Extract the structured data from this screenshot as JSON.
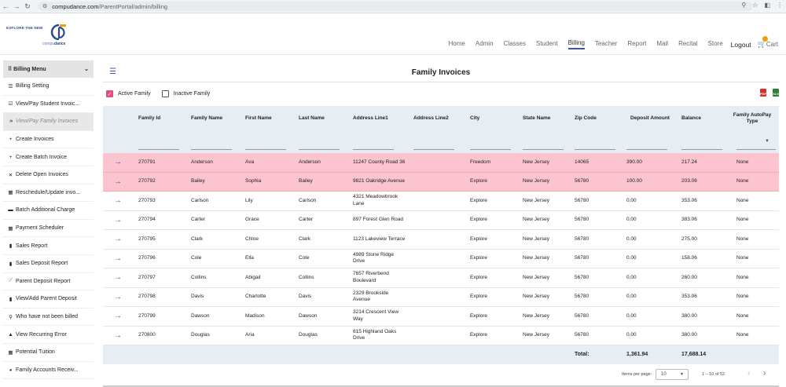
{
  "browser": {
    "host": "compudance.com",
    "path": "/ParentPortal/admin/billing"
  },
  "logo": {
    "tagline": "EXPLORE THE NEW",
    "brand_plain": "compu",
    "brand_bold": "dance"
  },
  "nav": {
    "items": [
      "Home",
      "Admin",
      "Classes",
      "Student",
      "Billing",
      "Teacher",
      "Report",
      "Mail",
      "Recital",
      "Store"
    ],
    "active": "Billing",
    "logout": "Logout",
    "cart": "Cart"
  },
  "sidebar": {
    "title": "Billing Menu",
    "items": [
      {
        "icon": "list-icon",
        "glyph": "☰",
        "label": "Billing Setting"
      },
      {
        "icon": "checkbox-icon",
        "glyph": "☑",
        "label": "View/Pay Student Invoic..."
      },
      {
        "icon": "flag-icon",
        "glyph": "⚑",
        "label": "View/Pay Family Invoices"
      },
      {
        "icon": "plus-icon",
        "glyph": "+",
        "label": "Create Invoices"
      },
      {
        "icon": "plus-icon",
        "glyph": "+",
        "label": "Create Batch Invoice"
      },
      {
        "icon": "x-icon",
        "glyph": "✕",
        "label": "Delete Open Invoices"
      },
      {
        "icon": "calendar-icon",
        "glyph": "▦",
        "label": "Reschedule/Update invo..."
      },
      {
        "icon": "card-icon",
        "glyph": "▬",
        "label": "Batch Additional Charge"
      },
      {
        "icon": "calendar-icon",
        "glyph": "▦",
        "label": "Payment Scheduler"
      },
      {
        "icon": "bar-chart-icon",
        "glyph": "▮",
        "label": "Sales Report"
      },
      {
        "icon": "bar-chart-icon",
        "glyph": "▮",
        "label": "Sales Deposit Report"
      },
      {
        "icon": "line-chart-icon",
        "glyph": "⟋",
        "label": "Parent Deposit Report"
      },
      {
        "icon": "bar-chart-icon",
        "glyph": "▮",
        "label": "View/Add Parent Deposit"
      },
      {
        "icon": "search-icon",
        "glyph": "⚲",
        "label": "Who have not been billed"
      },
      {
        "icon": "warning-icon",
        "glyph": "▲",
        "label": "View Recurring Error"
      },
      {
        "icon": "calendar-icon",
        "glyph": "▦",
        "label": "Potential Tuition"
      },
      {
        "icon": "pie-chart-icon",
        "glyph": "◕",
        "label": "Family Accounts Receiv..."
      }
    ]
  },
  "page": {
    "title": "Family Invoices",
    "filter_active": "Active Family",
    "filter_inactive": "Inactive Family"
  },
  "table": {
    "columns": [
      "",
      "Family Id",
      "Family Name",
      "First Name",
      "Last Name",
      "Address Line1",
      "Address Line2",
      "City",
      "State Name",
      "Zip Code",
      "Deposit Amount",
      "Balance",
      "Family AutoPay Type"
    ],
    "rows": [
      {
        "id": "270791",
        "family": "Anderson",
        "first": "Ava",
        "last": "Anderson",
        "addr1": "11247 County Road 36",
        "addr2": "",
        "city": "Freedom",
        "state": "New Jersey",
        "zip": "14065",
        "deposit": "390.00",
        "balance": "217.24",
        "autopay": "None",
        "highlight": true
      },
      {
        "id": "270792",
        "family": "Bailey",
        "first": "Sophia",
        "last": "Bailey",
        "addr1": "9821 Oakridge Avenue",
        "addr2": "",
        "city": "Explore",
        "state": "New Jersey",
        "zip": "56780",
        "deposit": "100.00",
        "balance": "203.06",
        "autopay": "None",
        "highlight": true
      },
      {
        "id": "270793",
        "family": "Carlson",
        "first": "Lily",
        "last": "Carlson",
        "addr1": "4321 Meadowbrook Lane",
        "addr2": "",
        "city": "Explore",
        "state": "New Jersey",
        "zip": "56780",
        "deposit": "0.00",
        "balance": "353.06",
        "autopay": "None",
        "highlight": false
      },
      {
        "id": "270794",
        "family": "Carter",
        "first": "Grace",
        "last": "Carter",
        "addr1": "897 Forest Glen Road",
        "addr2": "",
        "city": "Explore",
        "state": "New Jersey",
        "zip": "56780",
        "deposit": "0.00",
        "balance": "383.06",
        "autopay": "None",
        "highlight": false
      },
      {
        "id": "270795",
        "family": "Clark",
        "first": "Chloe",
        "last": "Clark",
        "addr1": "1123 Lakeview Terrace",
        "addr2": "",
        "city": "Explore",
        "state": "New Jersey",
        "zip": "56780",
        "deposit": "0.00",
        "balance": "275.00",
        "autopay": "None",
        "highlight": false
      },
      {
        "id": "270796",
        "family": "Cole",
        "first": "Ella",
        "last": "Cole",
        "addr1": "4989 Stone Ridge Drive",
        "addr2": "",
        "city": "Explore",
        "state": "New Jersey",
        "zip": "56780",
        "deposit": "0.00",
        "balance": "158.06",
        "autopay": "None",
        "highlight": false
      },
      {
        "id": "270797",
        "family": "Collins",
        "first": "Abigail",
        "last": "Collins",
        "addr1": "7657 Riverbend Boulevard",
        "addr2": "",
        "city": "Explore",
        "state": "New Jersey",
        "zip": "56780",
        "deposit": "0.00",
        "balance": "260.00",
        "autopay": "None",
        "highlight": false
      },
      {
        "id": "270798",
        "family": "Davis",
        "first": "Charlotte",
        "last": "Davis",
        "addr1": "2329 Brookside Avenue",
        "addr2": "",
        "city": "Explore",
        "state": "New Jersey",
        "zip": "56780",
        "deposit": "0.00",
        "balance": "353.06",
        "autopay": "None",
        "highlight": false
      },
      {
        "id": "270799",
        "family": "Dawson",
        "first": "Madison",
        "last": "Dawson",
        "addr1": "3214 Crescent View Way",
        "addr2": "",
        "city": "Explore",
        "state": "New Jersey",
        "zip": "56780",
        "deposit": "0.00",
        "balance": "380.00",
        "autopay": "None",
        "highlight": false
      },
      {
        "id": "270800",
        "family": "Douglas",
        "first": "Aria",
        "last": "Douglas",
        "addr1": "615 Highland Oaks Drive",
        "addr2": "",
        "city": "Explore",
        "state": "New Jersey",
        "zip": "56780",
        "deposit": "0.00",
        "balance": "380.00",
        "autopay": "None",
        "highlight": false
      }
    ],
    "footer": {
      "label": "Total:",
      "deposit_total": "1,361.94",
      "balance_total": "17,688.14"
    }
  },
  "pagination": {
    "items_per_page_label": "Items per page:",
    "items_per_page": "10",
    "range": "1 – 10 of 52"
  },
  "colors": {
    "accent": "#3f51b5",
    "highlight_row": "#fbc4ce",
    "header_bg": "#e6eef3",
    "checkbox_on": "#e84a7f"
  }
}
